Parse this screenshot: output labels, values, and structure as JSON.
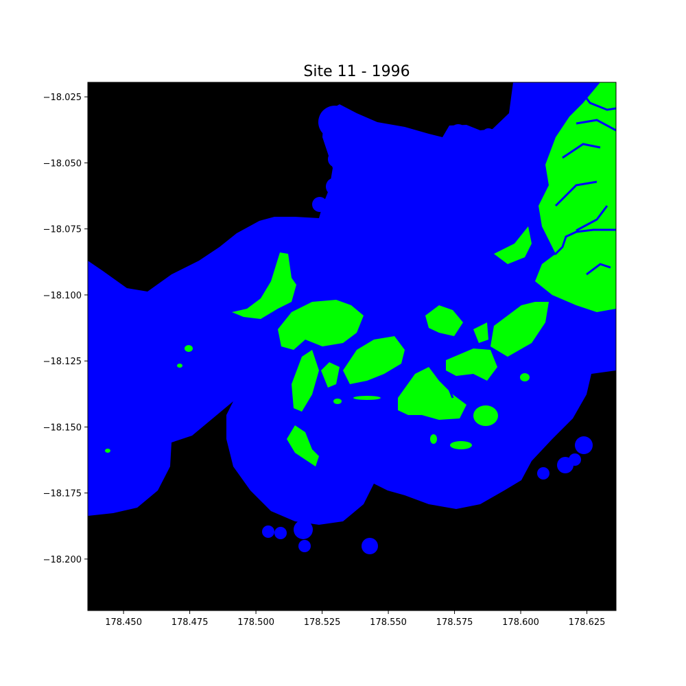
{
  "title": "Site 11 - 1996",
  "colors": {
    "background": "#000000",
    "buffer": "#0000ff",
    "vegetation": "#00ff00",
    "axes": "#000000"
  },
  "chart_data": {
    "type": "heatmap",
    "title": "Site 11 - 1996",
    "xlabel": "",
    "ylabel": "",
    "xlim": [
      178.4365,
      178.636
    ],
    "ylim": [
      -18.2195,
      -18.0195
    ],
    "x_ticks": [
      "178.450",
      "178.475",
      "178.500",
      "178.525",
      "178.550",
      "178.575",
      "178.600",
      "178.625"
    ],
    "x_tick_values": [
      178.45,
      178.475,
      178.5,
      178.525,
      178.55,
      178.575,
      178.6,
      178.625
    ],
    "y_ticks": [
      "−18.025",
      "−18.050",
      "−18.075",
      "−18.100",
      "−18.125",
      "−18.150",
      "−18.175",
      "−18.200"
    ],
    "y_tick_values": [
      -18.025,
      -18.05,
      -18.075,
      -18.1,
      -18.125,
      -18.15,
      -18.175,
      -18.2
    ],
    "grid": false,
    "classes": [
      {
        "value": 0,
        "color": "#000000"
      },
      {
        "value": 1,
        "color": "#0000ff"
      },
      {
        "value": 2,
        "color": "#00ff00"
      }
    ]
  }
}
